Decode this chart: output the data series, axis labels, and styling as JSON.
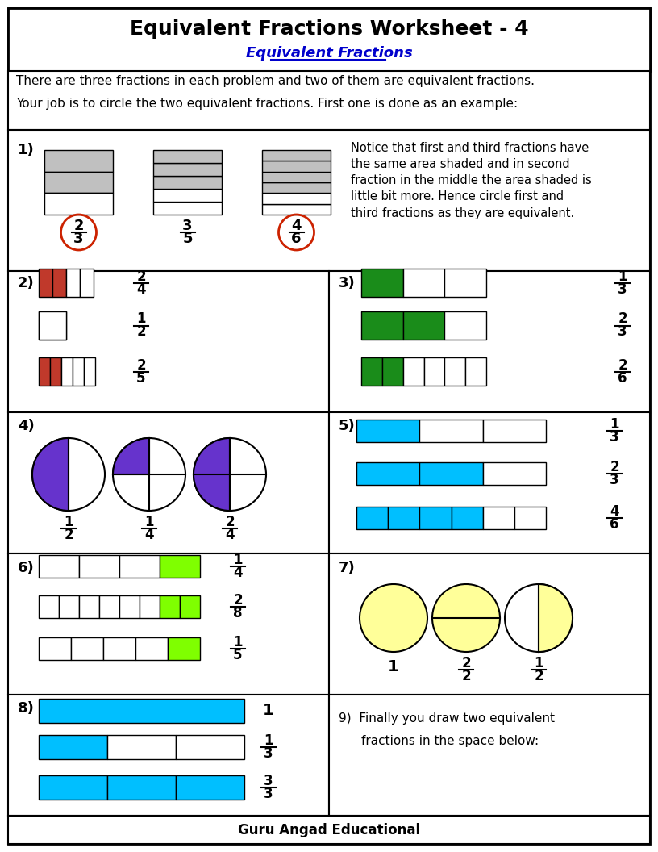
{
  "title": "Equivalent Fractions Worksheet - 4",
  "subtitle": "Equivalent Fractions",
  "subtitle_color": "#0000CC",
  "footer": "Guru Angad Educational",
  "background": "#ffffff",
  "border_color": "#000000",
  "gray_shade": "#c0c0c0",
  "red_shade": "#c0392b",
  "green_shade": "#1a8c1a",
  "purple_shade": "#6633cc",
  "cyan_shade": "#00bfff",
  "yellow_shade": "#ffff99",
  "lime_shade": "#7fff00"
}
